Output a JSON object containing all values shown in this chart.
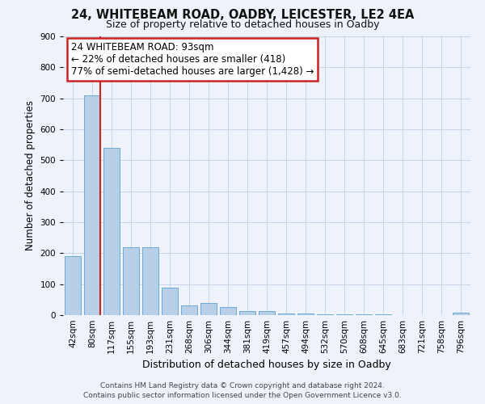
{
  "title1": "24, WHITEBEAM ROAD, OADBY, LEICESTER, LE2 4EA",
  "title2": "Size of property relative to detached houses in Oadby",
  "xlabel": "Distribution of detached houses by size in Oadby",
  "ylabel": "Number of detached properties",
  "categories": [
    "42sqm",
    "80sqm",
    "117sqm",
    "155sqm",
    "193sqm",
    "231sqm",
    "268sqm",
    "306sqm",
    "344sqm",
    "381sqm",
    "419sqm",
    "457sqm",
    "494sqm",
    "532sqm",
    "570sqm",
    "608sqm",
    "645sqm",
    "683sqm",
    "721sqm",
    "758sqm",
    "796sqm"
  ],
  "values": [
    190,
    710,
    540,
    220,
    220,
    90,
    32,
    40,
    25,
    12,
    12,
    5,
    5,
    3,
    3,
    2,
    2,
    1,
    1,
    1,
    8
  ],
  "bar_color": "#b8cfe8",
  "bar_edge_color": "#6aaad4",
  "vline_x_index": 1,
  "vline_color": "#cc2222",
  "annotation_text": "24 WHITEBEAM ROAD: 93sqm\n← 22% of detached houses are smaller (418)\n77% of semi-detached houses are larger (1,428) →",
  "annotation_box_facecolor": "#ffffff",
  "annotation_box_edgecolor": "#cc2222",
  "ylim": [
    0,
    900
  ],
  "yticks": [
    0,
    100,
    200,
    300,
    400,
    500,
    600,
    700,
    800,
    900
  ],
  "footer1": "Contains HM Land Registry data © Crown copyright and database right 2024.",
  "footer2": "Contains public sector information licensed under the Open Government Licence v3.0.",
  "grid_color": "#c8d4e8",
  "background_color": "#eef2fb",
  "title1_fontsize": 10.5,
  "title2_fontsize": 9,
  "ylabel_fontsize": 8.5,
  "xlabel_fontsize": 9,
  "tick_fontsize": 7.5,
  "footer_fontsize": 6.5,
  "annot_fontsize": 8.5
}
